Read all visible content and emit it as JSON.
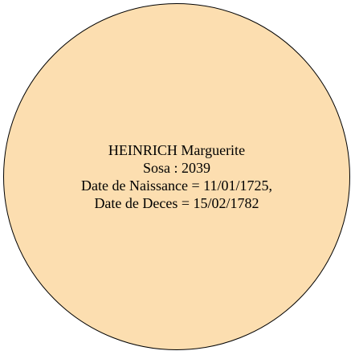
{
  "person": {
    "name": "HEINRICH Marguerite",
    "sosa": "Sosa : 2039",
    "birth": "Date de Naissance = 11/01/1725,",
    "death": "Date de Deces = 15/02/1782"
  },
  "colors": {
    "node_fill": "#fcdeb0",
    "node_border": "#000000",
    "text": "#000000"
  }
}
